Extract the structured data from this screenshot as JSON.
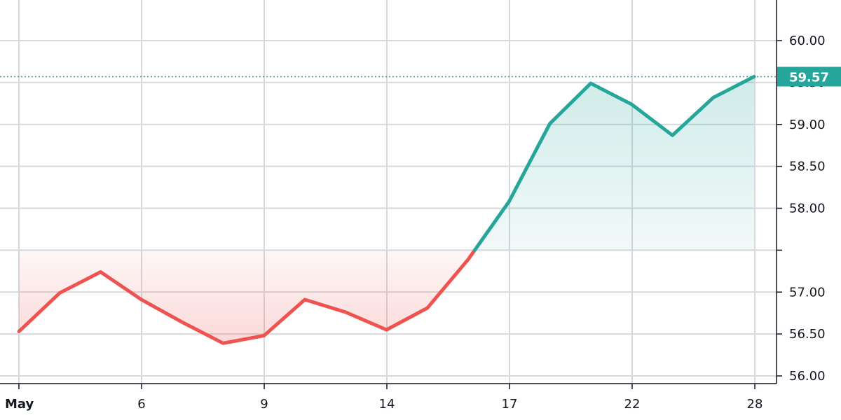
{
  "chart_data": {
    "type": "area",
    "baseline": 57.5,
    "ylim": [
      55.9,
      60.45
    ],
    "y_ticks": [
      56.0,
      56.5,
      57.0,
      57.5,
      58.0,
      58.5,
      59.0,
      59.5,
      60.0
    ],
    "y_tick_labels": [
      "56.00",
      "56.50",
      "57.00",
      "",
      "58.00",
      "58.50",
      "59.00",
      "59.50",
      "60.00"
    ],
    "x_ticks": [
      {
        "x": 1,
        "label": "May",
        "bold": true
      },
      {
        "x": 6,
        "label": "6"
      },
      {
        "x": 9,
        "label": "9"
      },
      {
        "x": 14,
        "label": "14"
      },
      {
        "x": 17,
        "label": "17"
      },
      {
        "x": 22,
        "label": "22"
      },
      {
        "x": 28,
        "label": "28"
      }
    ],
    "series": [
      {
        "x": [
          1,
          2,
          3,
          4,
          5,
          6,
          7,
          8,
          9,
          10,
          11,
          12,
          13,
          14,
          15,
          16,
          17,
          18,
          19
        ],
        "values": [
          56.53,
          56.99,
          57.24,
          56.91,
          56.64,
          56.39,
          56.48,
          56.91,
          56.76,
          56.55,
          56.81,
          57.39,
          58.08,
          59.01,
          59.49,
          59.24,
          58.87,
          59.32,
          59.57
        ]
      }
    ],
    "up_color": "#26a69a",
    "down_color": "#ef5350",
    "last_value_label": "59.57",
    "last_value_color": "#26a69a"
  }
}
